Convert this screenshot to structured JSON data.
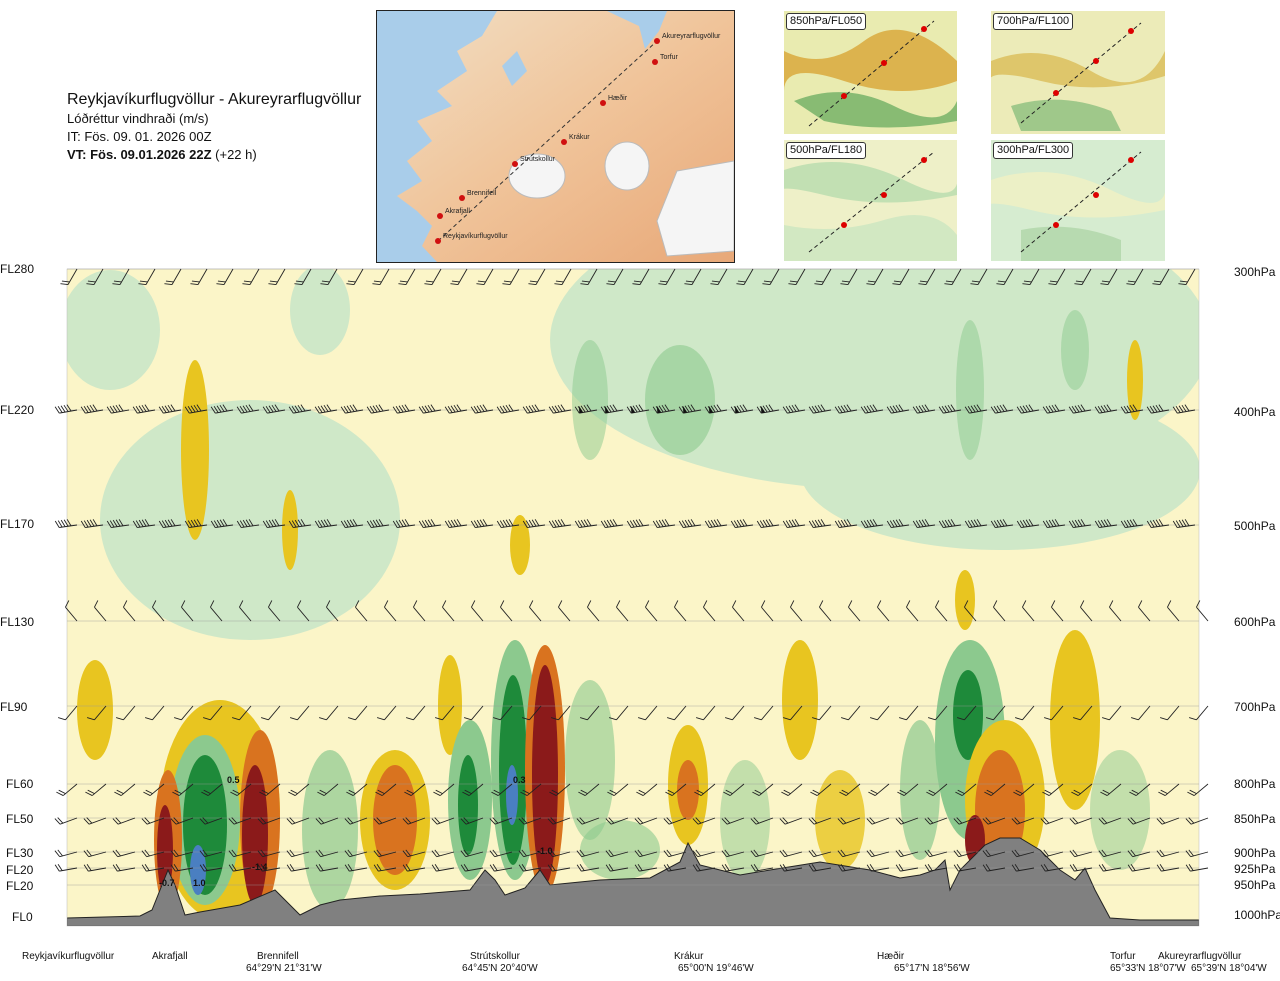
{
  "header": {
    "route": "Reykjavíkurflugvöllur - Akureyrarflugvöllur",
    "quantity": "Lóðréttur vindhraði (m/s)",
    "initial_time": "IT: Fös. 09. 01. 2026 00Z",
    "valid_time_bold": "VT: Fös. 09.01.2026 22Z",
    "valid_time_offset": "(+22 h)"
  },
  "map": {
    "stations": [
      {
        "label": "Akureyrarflugvöllur"
      },
      {
        "label": "Torfur"
      },
      {
        "label": "Hæðir"
      },
      {
        "label": "Krákur"
      },
      {
        "label": "Strútskollur"
      },
      {
        "label": "Brennifell"
      },
      {
        "label": "Akrafjall"
      },
      {
        "label": "Reykjavíkurflugvöllur"
      }
    ]
  },
  "thumbnails": [
    {
      "label": "850hPa/FL050"
    },
    {
      "label": "700hPa/FL100"
    },
    {
      "label": "500hPa/FL180"
    },
    {
      "label": "300hPa/FL300"
    }
  ],
  "levels_left": [
    "FL280",
    "FL220",
    "FL170",
    "FL130",
    "FL90",
    "FL60",
    "FL50",
    "FL30",
    "FL20",
    "FL20",
    "FL0"
  ],
  "levels_right": [
    "300hPa",
    "400hPa",
    "500hPa",
    "600hPa",
    "700hPa",
    "800hPa",
    "850hPa",
    "900hPa",
    "925hPa",
    "950hPa",
    "1000hPa"
  ],
  "bottom_stations": [
    {
      "name": "Reykjavíkurflugvöllur",
      "coord": ""
    },
    {
      "name": "Akrafjall",
      "coord": ""
    },
    {
      "name": "Brennifell",
      "coord": "64°29'N 21°31'W"
    },
    {
      "name": "Strútskollur",
      "coord": "64°45'N 20°40'W"
    },
    {
      "name": "Krákur",
      "coord": "65°00'N 19°46'W"
    },
    {
      "name": "Hæðir",
      "coord": "65°17'N 18°56'W"
    },
    {
      "name": "Torfur",
      "coord": "65°33'N 18°07'W"
    },
    {
      "name": "Akureyrarflugvöllur",
      "coord": "65°39'N 18°04'W"
    }
  ],
  "colors": {
    "strong_down": "#8b1a1a",
    "down": "#d9731f",
    "weak_down": "#e8c520",
    "slight_down": "#f5ec8a",
    "neutral": "#fbf5c8",
    "slight_up": "#cfe8c8",
    "up": "#8cc98e",
    "strong_up": "#1e8a3a",
    "very_strong_up": "#4a7fc1",
    "terrain": "#808080"
  },
  "chart_data": {
    "type": "heatmap",
    "title": "Lóðréttur vindhraði (m/s)",
    "xlabel": "",
    "ylabel": "",
    "pressure_levels_hPa": [
      300,
      400,
      500,
      600,
      700,
      800,
      850,
      900,
      925,
      950,
      1000
    ],
    "flight_levels": [
      "FL280",
      "FL220",
      "FL170",
      "FL130",
      "FL90",
      "FL60",
      "FL50",
      "FL30",
      "FL20",
      "FL20",
      "FL0"
    ],
    "value_labels": [
      {
        "label": "-0.7",
        "near": "Akrafjall",
        "level_hPa": 950
      },
      {
        "label": "1.0",
        "near": "Akrafjall",
        "level_hPa": 950
      },
      {
        "label": "0.5",
        "near": "Brennifell",
        "level_hPa": 800
      },
      {
        "label": "-1.4",
        "near": "Brennifell",
        "level_hPa": 940
      },
      {
        "label": "0.3",
        "near": "Strútskollur",
        "level_hPa": 800
      },
      {
        "label": "-1.0",
        "near": "Strútskollur",
        "level_hPa": 910
      }
    ]
  }
}
